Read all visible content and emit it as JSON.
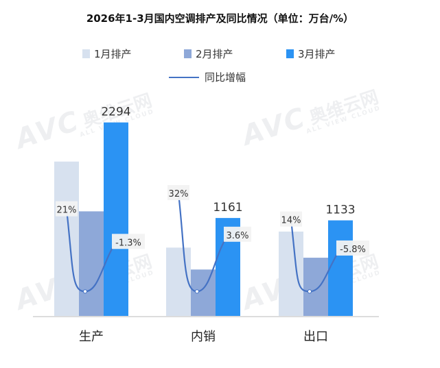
{
  "title": "2026年1-3月国内空调排产及同比情况（单位：万台/%）",
  "watermark": {
    "logo": "AVC",
    "cn": "奥维云网",
    "sub": "ALL VIEW CLOUD"
  },
  "colors": {
    "m1": "#d7e1ef",
    "m2": "#8ea8d8",
    "m3": "#2b93f3",
    "line": "#4472c4",
    "axis": "#d0d0d0"
  },
  "chart_data": {
    "type": "bar",
    "title": "2026年1-3月国内空调排产及同比情况（单位：万台/%）",
    "categories": [
      "生产",
      "内销",
      "出口"
    ],
    "series": [
      {
        "name": "1月排产",
        "values": [
          1830,
          810,
          1000
        ],
        "color": "#d7e1ef"
      },
      {
        "name": "2月排产",
        "values": [
          1240,
          550,
          690
        ],
        "color": "#8ea8d8"
      },
      {
        "name": "3月排产",
        "values": [
          2294,
          1161,
          1133
        ],
        "color": "#2b93f3",
        "labels": [
          "2294",
          "1161",
          "1133"
        ]
      }
    ],
    "line": {
      "name": "同比增幅",
      "color": "#4472c4",
      "groups": [
        {
          "category": "生产",
          "points": [
            21,
            -35,
            -1.3
          ],
          "labels": [
            "21%",
            "",
            "-1.3%"
          ]
        },
        {
          "category": "内销",
          "points": [
            32,
            -35,
            3.6
          ],
          "labels": [
            "32%",
            "",
            "3.6%"
          ]
        },
        {
          "category": "出口",
          "points": [
            14,
            -35,
            -5.8
          ],
          "labels": [
            "14%",
            "",
            "-5.8%"
          ]
        }
      ]
    },
    "ylim": [
      0,
      2600
    ],
    "legend": "top"
  }
}
